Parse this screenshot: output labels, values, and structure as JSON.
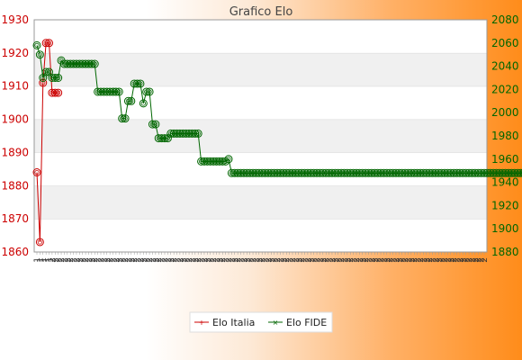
{
  "chart_data": {
    "type": "line",
    "title": "Grafico Elo",
    "legend_position": "bottom",
    "y_left": {
      "min": 1860,
      "max": 1930,
      "ticks": [
        1860,
        1870,
        1880,
        1890,
        1900,
        1910,
        1920,
        1930
      ],
      "color": "#cc0000"
    },
    "y_right": {
      "min": 1880,
      "max": 2080,
      "ticks": [
        1880,
        1900,
        1920,
        1940,
        1960,
        1980,
        2000,
        2020,
        2040,
        2060,
        2080
      ],
      "color": "#006600"
    },
    "x_tick_labels": [
      "1",
      "1",
      "1",
      "1",
      "1",
      "2",
      "2",
      "2",
      "2",
      "2",
      "2",
      "2",
      "2",
      "2",
      "2",
      "2",
      "2",
      "2",
      "2",
      "2",
      "2",
      "2",
      "2",
      "2",
      "2",
      "2",
      "2",
      "2",
      "2",
      "2",
      "2",
      "2",
      "2",
      "2",
      "2",
      "2",
      "2",
      "2",
      "2",
      "2",
      "2",
      "2",
      "2",
      "2",
      "2",
      "2",
      "2",
      "2",
      "2",
      "2",
      "2",
      "2",
      "2",
      "2",
      "2",
      "2",
      "2",
      "2",
      "2",
      "2",
      "2",
      "2",
      "2",
      "2",
      "2",
      "2",
      "2",
      "2",
      "2",
      "2",
      "2",
      "2",
      "2",
      "2",
      "2",
      "2",
      "2",
      "2",
      "2",
      "2",
      "2",
      "2",
      "2",
      "2",
      "2",
      "2",
      "2",
      "2",
      "2",
      "2",
      "2",
      "2",
      "2",
      "2",
      "2",
      "2",
      "2",
      "2",
      "2",
      "2",
      "2",
      "2",
      "2",
      "2",
      "2",
      "2",
      "2",
      "2",
      "2",
      "2",
      "2",
      "2",
      "2",
      "2",
      "2",
      "2",
      "2",
      "2",
      "2",
      "2",
      "2",
      "2",
      "2",
      "2",
      "2",
      "2",
      "2",
      "2",
      "2",
      "2",
      "2",
      "2",
      "2",
      "2",
      "2",
      "2",
      "2",
      "2",
      "2",
      "2",
      "2",
      "2",
      "2",
      "2",
      "2",
      "2",
      "2",
      "2"
    ],
    "series": [
      {
        "name": "Elo Italia",
        "axis": "left",
        "color": "#cc0000",
        "values": [
          1884,
          1863,
          1911,
          1923,
          1923,
          1908,
          1908,
          1908
        ]
      },
      {
        "name": "Elo FIDE",
        "axis": "right",
        "color": "#006600",
        "values": [
          2058,
          2050,
          2030,
          2035,
          2035,
          2030,
          2030,
          2030,
          2045,
          2042,
          2042,
          2042,
          2042,
          2042,
          2042,
          2042,
          2042,
          2042,
          2042,
          2042,
          2018,
          2018,
          2018,
          2018,
          2018,
          2018,
          2018,
          2018,
          1995,
          1995,
          2010,
          2010,
          2025,
          2025,
          2025,
          2008,
          2018,
          2018,
          1990,
          1990,
          1978,
          1978,
          1978,
          1978,
          1982,
          1982,
          1982,
          1982,
          1982,
          1982,
          1982,
          1982,
          1982,
          1982,
          1958,
          1958,
          1958,
          1958,
          1958,
          1958,
          1958,
          1958,
          1958,
          1960,
          1948,
          1948,
          1948,
          1948,
          1948,
          1948,
          1948,
          1948,
          1948,
          1948,
          1948,
          1948,
          1948,
          1948,
          1948,
          1948,
          1948,
          1948,
          1948,
          1948,
          1948,
          1948,
          1948,
          1948,
          1948,
          1948,
          1948,
          1948,
          1948,
          1948,
          1948,
          1948,
          1948,
          1948,
          1948,
          1948,
          1948,
          1948,
          1948,
          1948,
          1948,
          1948,
          1948,
          1948,
          1948,
          1948,
          1948,
          1948,
          1948,
          1948,
          1948,
          1948,
          1948,
          1948,
          1948,
          1948,
          1948,
          1948,
          1948,
          1948,
          1948,
          1948,
          1948,
          1948,
          1948,
          1948,
          1948,
          1948,
          1948,
          1948,
          1948,
          1948,
          1948,
          1948,
          1948,
          1948,
          1948,
          1948,
          1948,
          1948,
          1948,
          1948,
          1948,
          1948,
          1948,
          1948,
          1948,
          1948,
          1948,
          1948,
          1948,
          1948,
          1948,
          1948,
          1948,
          1948,
          1948,
          1948,
          1948,
          1948,
          1948,
          1948,
          1948,
          1948,
          1948,
          1948,
          1948,
          1948,
          1948,
          1948,
          1948,
          1948,
          1948,
          1948,
          1948,
          1948,
          1948,
          1948,
          1948
        ]
      }
    ]
  }
}
